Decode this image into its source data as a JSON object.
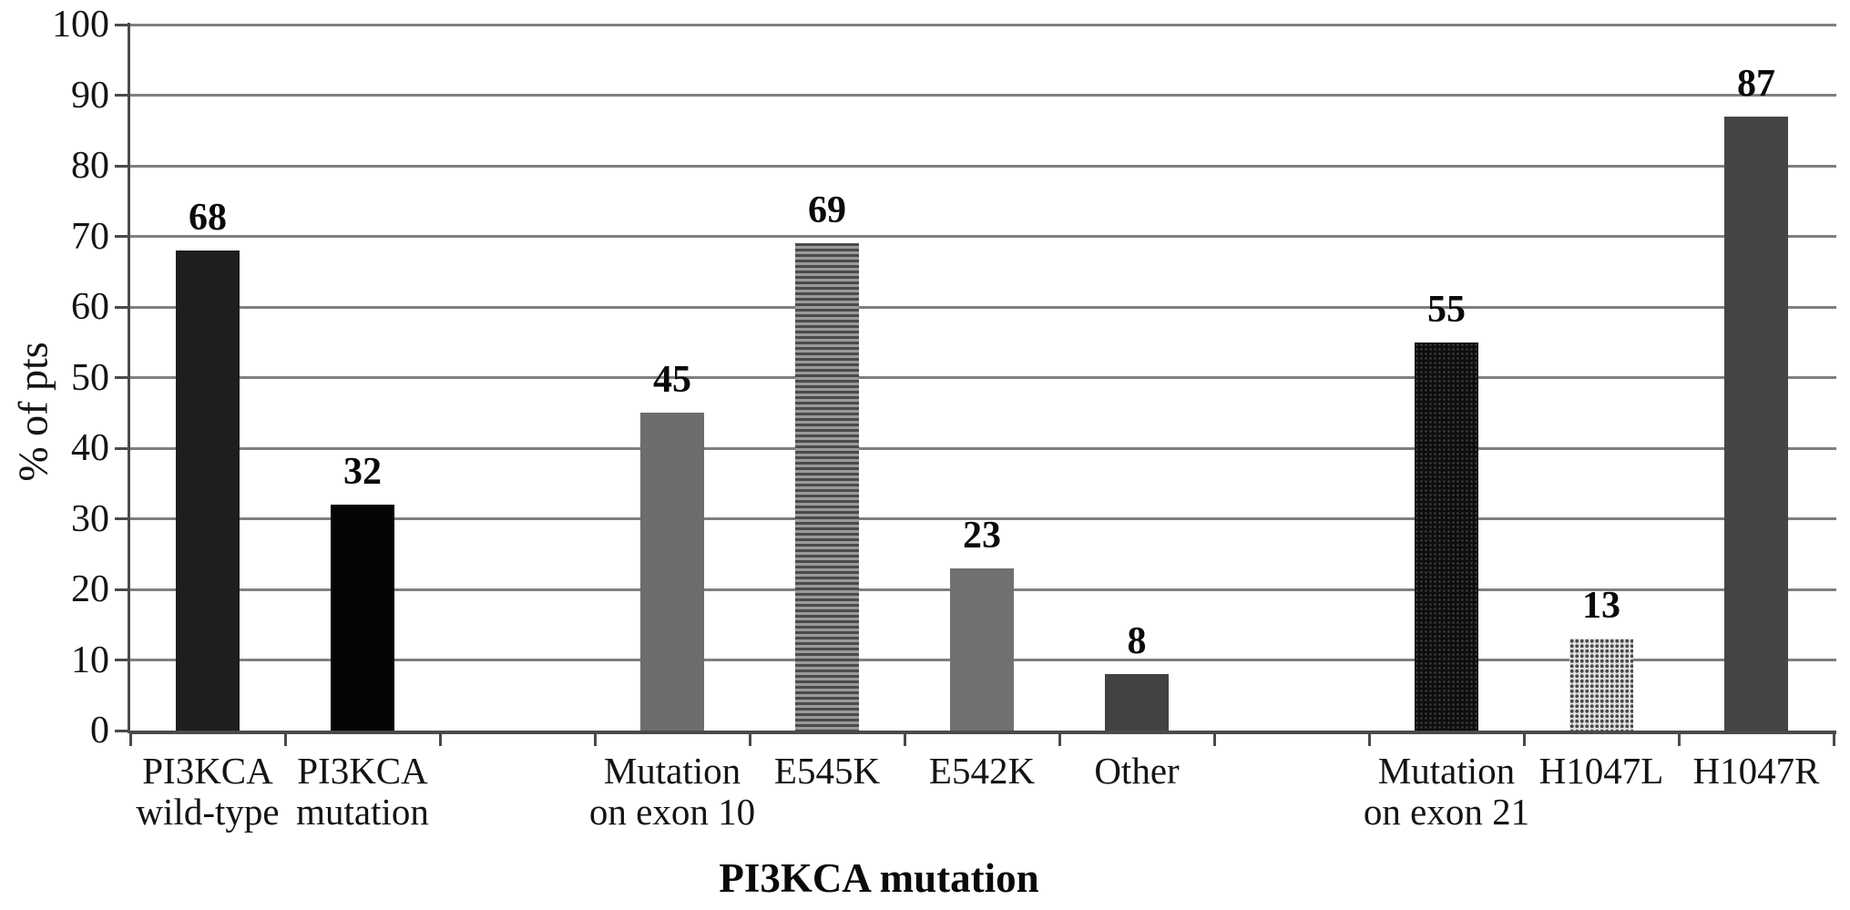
{
  "chart_data": {
    "type": "bar",
    "title": "PI3KCA mutation",
    "xlabel": "PI3KCA mutation",
    "ylabel": "% of pts",
    "ylim": [
      0,
      100
    ],
    "yticks": [
      0,
      10,
      20,
      30,
      40,
      50,
      60,
      70,
      80,
      90,
      100
    ],
    "grid": true,
    "legend": "none",
    "slots_total": 11,
    "categories": [
      "PI3KCA wild-type",
      "PI3KCA mutation",
      "Mutation on exon 10",
      "E545K",
      "E542K",
      "Other",
      "Mutation on exon 21",
      "H1047L",
      "H1047R"
    ],
    "values": [
      68,
      32,
      45,
      69,
      23,
      8,
      55,
      13,
      87
    ],
    "bars": [
      {
        "label": "PI3KCA\nwild-type",
        "value": 68,
        "slot": 0,
        "pattern": "solid",
        "fill": "#1e1e1e"
      },
      {
        "label": "PI3KCA\nmutation",
        "value": 32,
        "slot": 1,
        "pattern": "solid",
        "fill": "#040404"
      },
      {
        "label": "Mutation\non exon 10",
        "value": 45,
        "slot": 3,
        "pattern": "solid",
        "fill": "#6d6d6d"
      },
      {
        "label": "E545K",
        "value": 69,
        "slot": 4,
        "pattern": "hstripes",
        "fill": "#4b4b4b",
        "fill2": "#9a9a9a"
      },
      {
        "label": "E542K",
        "value": 23,
        "slot": 5,
        "pattern": "solid",
        "fill": "#707070"
      },
      {
        "label": "Other",
        "value": 8,
        "slot": 6,
        "pattern": "solid",
        "fill": "#424242"
      },
      {
        "label": "Mutation\non exon 21",
        "value": 55,
        "slot": 8,
        "pattern": "dots-dark",
        "fill": "#0e0e0e",
        "fill2": "#3a3a3a"
      },
      {
        "label": "H1047L",
        "value": 13,
        "slot": 9,
        "pattern": "dots-light",
        "fill": "#e0e0e0",
        "fill2": "#4a4a4a"
      },
      {
        "label": "H1047R",
        "value": 87,
        "slot": 10,
        "pattern": "solid",
        "fill": "#454545"
      }
    ],
    "colors": {
      "grid": "#7f7f7f",
      "axis": "#4a4a4a",
      "text": "#141414"
    }
  }
}
